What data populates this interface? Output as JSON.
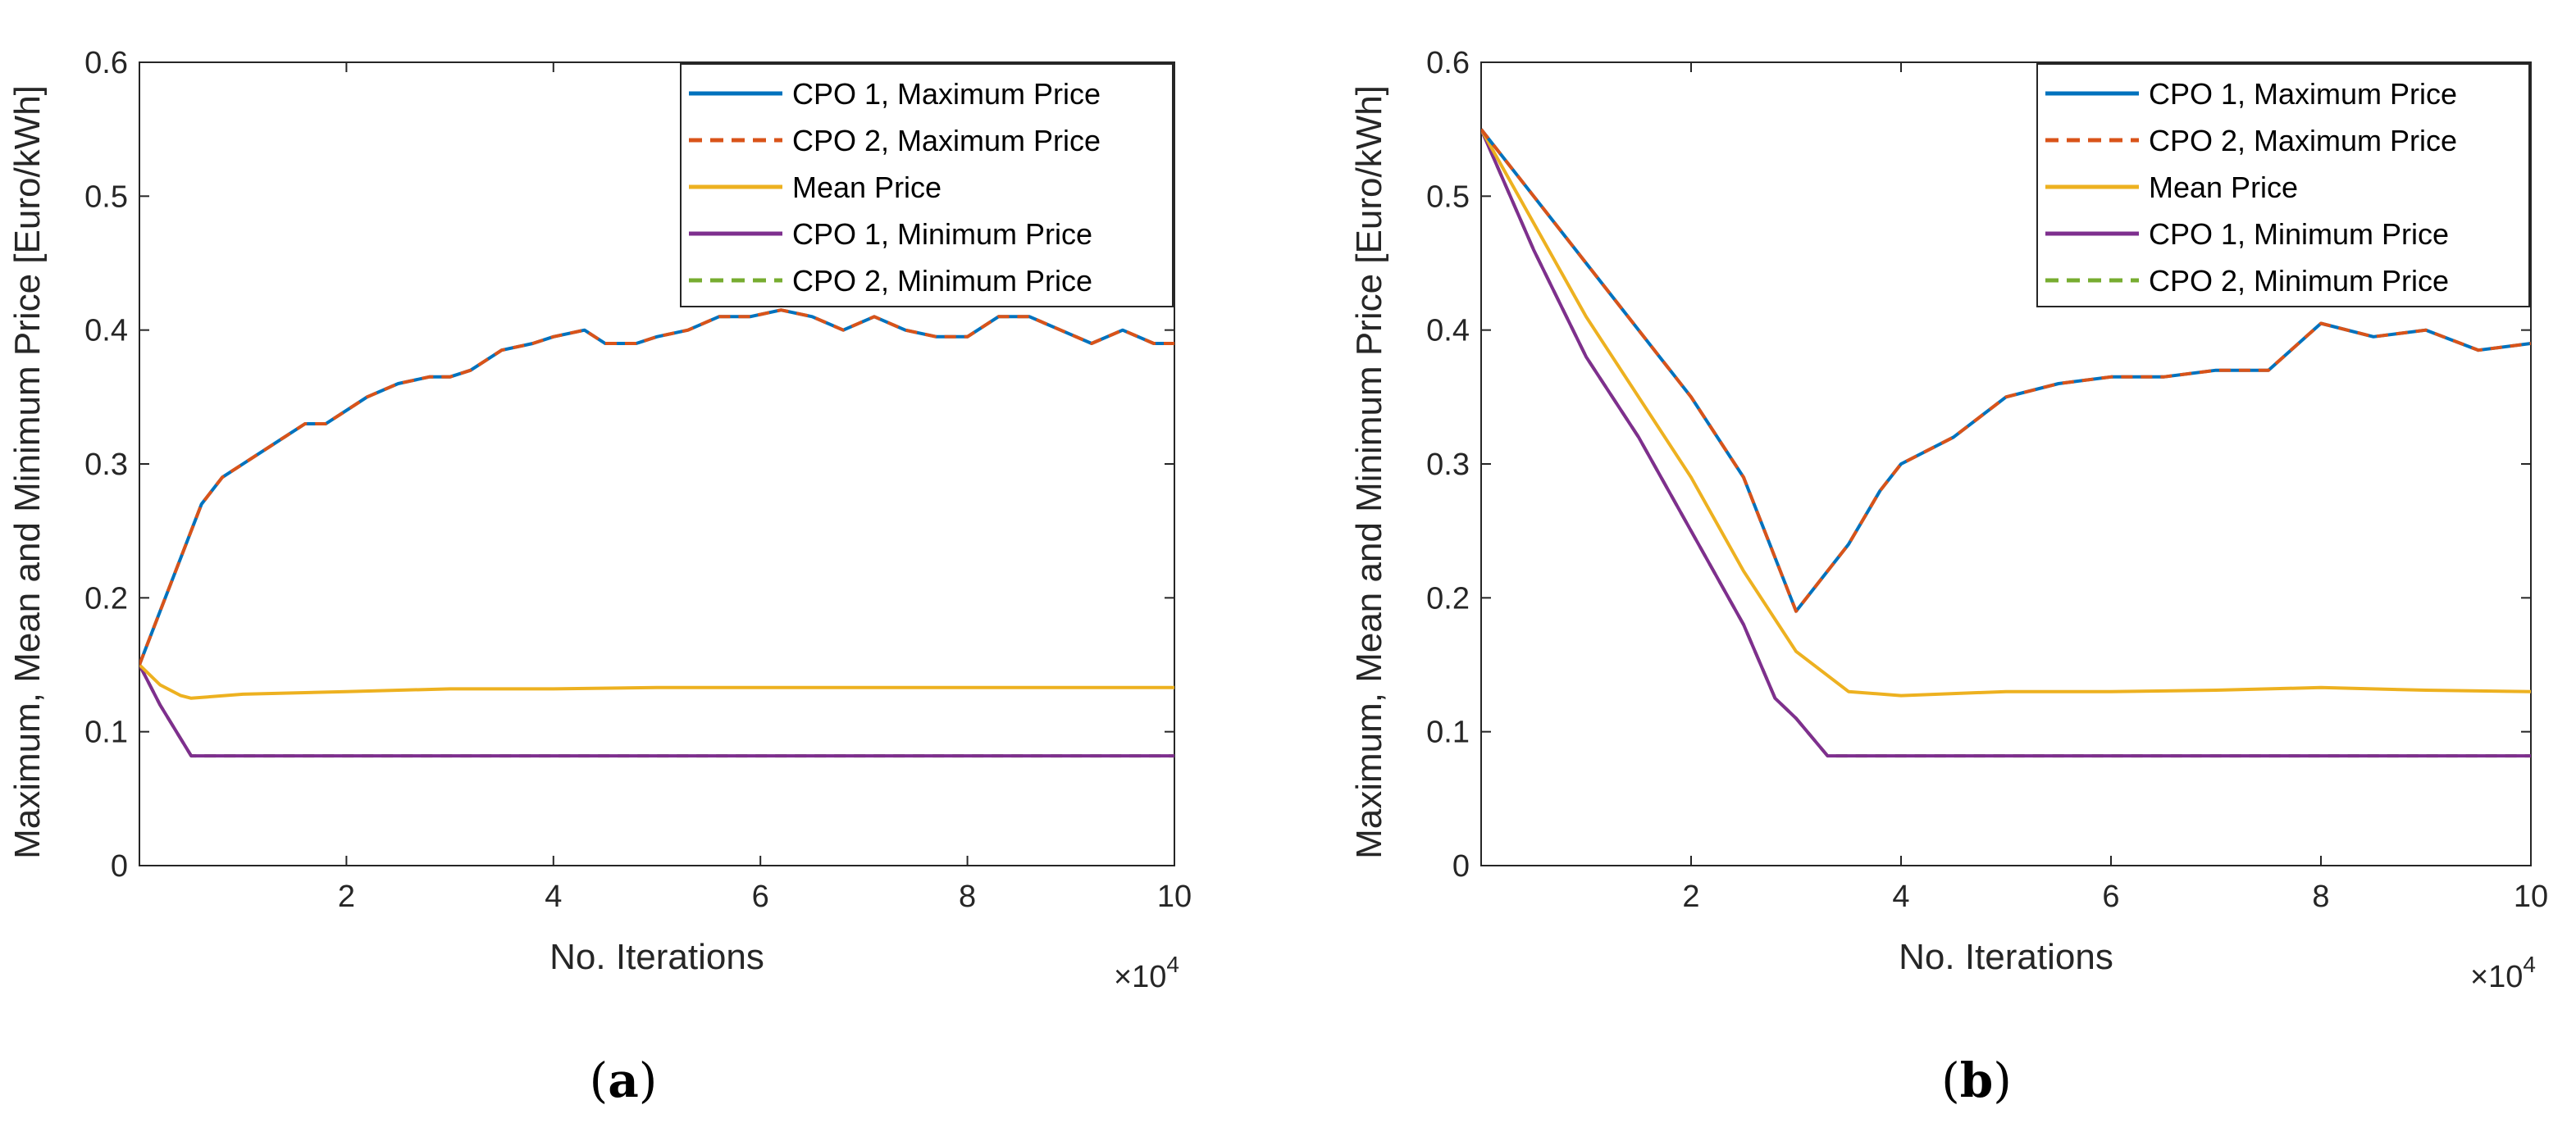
{
  "colors": {
    "cpo1_max": "#0072BD",
    "cpo2_max": "#D95319",
    "mean": "#EDB120",
    "cpo1_min": "#7E2F8E",
    "cpo2_min": "#77AC30"
  },
  "chart_data": [
    {
      "type": "line",
      "panel_label": "(a)",
      "xlabel": "No. Iterations",
      "ylabel": "Maximum, Mean and Minimum Price [Euro/kWh]",
      "x_multiplier": "×10",
      "x_multiplier_exp": "4",
      "xlim": [
        0,
        10
      ],
      "ylim": [
        0,
        0.6
      ],
      "xticks": [
        2,
        4,
        6,
        8,
        10
      ],
      "xtick_labels": [
        "2",
        "4",
        "6",
        "8",
        "10"
      ],
      "yticks": [
        0,
        0.1,
        0.2,
        0.3,
        0.4,
        0.5,
        0.6
      ],
      "ytick_labels": [
        "0",
        "0.1",
        "0.2",
        "0.3",
        "0.4",
        "0.5",
        "0.6"
      ],
      "legend_position": "top-right",
      "series": [
        {
          "key": "cpo1_max",
          "name": "CPO 1, Maximum Price",
          "style": "solid",
          "x": [
            0,
            0.2,
            0.4,
            0.6,
            0.8,
            1.0,
            1.2,
            1.4,
            1.6,
            1.8,
            2.0,
            2.2,
            2.5,
            2.8,
            3.0,
            3.2,
            3.5,
            3.8,
            4.0,
            4.3,
            4.5,
            4.8,
            5.0,
            5.3,
            5.6,
            5.9,
            6.2,
            6.5,
            6.8,
            7.1,
            7.4,
            7.7,
            8.0,
            8.3,
            8.6,
            8.9,
            9.2,
            9.5,
            9.8,
            10.0
          ],
          "y": [
            0.15,
            0.19,
            0.23,
            0.27,
            0.29,
            0.3,
            0.31,
            0.32,
            0.33,
            0.33,
            0.34,
            0.35,
            0.36,
            0.365,
            0.365,
            0.37,
            0.385,
            0.39,
            0.395,
            0.4,
            0.39,
            0.39,
            0.395,
            0.4,
            0.41,
            0.41,
            0.415,
            0.41,
            0.4,
            0.41,
            0.4,
            0.395,
            0.395,
            0.41,
            0.41,
            0.4,
            0.39,
            0.4,
            0.39,
            0.39
          ]
        },
        {
          "key": "cpo2_max",
          "name": "CPO 2, Maximum Price",
          "style": "dashed",
          "x": [
            0,
            0.2,
            0.4,
            0.6,
            0.8,
            1.0,
            1.2,
            1.4,
            1.6,
            1.8,
            2.0,
            2.2,
            2.5,
            2.8,
            3.0,
            3.2,
            3.5,
            3.8,
            4.0,
            4.3,
            4.5,
            4.8,
            5.0,
            5.3,
            5.6,
            5.9,
            6.2,
            6.5,
            6.8,
            7.1,
            7.4,
            7.7,
            8.0,
            8.3,
            8.6,
            8.9,
            9.2,
            9.5,
            9.8,
            10.0
          ],
          "y": [
            0.15,
            0.19,
            0.23,
            0.27,
            0.29,
            0.3,
            0.31,
            0.32,
            0.33,
            0.33,
            0.34,
            0.35,
            0.36,
            0.365,
            0.365,
            0.37,
            0.385,
            0.39,
            0.395,
            0.4,
            0.39,
            0.39,
            0.395,
            0.4,
            0.41,
            0.41,
            0.415,
            0.41,
            0.4,
            0.41,
            0.4,
            0.395,
            0.395,
            0.41,
            0.41,
            0.4,
            0.39,
            0.4,
            0.39,
            0.39
          ]
        },
        {
          "key": "mean",
          "name": "Mean Price",
          "style": "solid",
          "x": [
            0,
            0.2,
            0.4,
            0.5,
            1.0,
            2.0,
            3.0,
            4.0,
            5.0,
            6.0,
            7.0,
            8.0,
            9.0,
            10.0
          ],
          "y": [
            0.15,
            0.135,
            0.127,
            0.125,
            0.128,
            0.13,
            0.132,
            0.132,
            0.133,
            0.133,
            0.133,
            0.133,
            0.133,
            0.133
          ]
        },
        {
          "key": "cpo1_min",
          "name": "CPO 1, Minimum Price",
          "style": "solid",
          "x": [
            0,
            0.2,
            0.5,
            1.0,
            5.0,
            10.0
          ],
          "y": [
            0.15,
            0.12,
            0.082,
            0.082,
            0.082,
            0.082
          ]
        },
        {
          "key": "cpo2_min",
          "name": "CPO 2, Minimum Price",
          "style": "dashed",
          "x": [
            0,
            0.2,
            0.5,
            1.0,
            5.0,
            10.0
          ],
          "y": [
            0.15,
            0.12,
            0.082,
            0.082,
            0.082,
            0.082
          ]
        }
      ]
    },
    {
      "type": "line",
      "panel_label": "(b)",
      "xlabel": "No. Iterations",
      "ylabel": "Maximum, Mean and Minimum Price [Euro/kWh]",
      "x_multiplier": "×10",
      "x_multiplier_exp": "4",
      "xlim": [
        0,
        10
      ],
      "ylim": [
        0,
        0.6
      ],
      "xticks": [
        2,
        4,
        6,
        8,
        10
      ],
      "xtick_labels": [
        "2",
        "4",
        "6",
        "8",
        "10"
      ],
      "yticks": [
        0,
        0.1,
        0.2,
        0.3,
        0.4,
        0.5,
        0.6
      ],
      "ytick_labels": [
        "0",
        "0.1",
        "0.2",
        "0.3",
        "0.4",
        "0.5",
        "0.6"
      ],
      "legend_position": "top-right",
      "series": [
        {
          "key": "cpo1_max",
          "name": "CPO 1, Maximum Price",
          "style": "solid",
          "x": [
            0,
            0.5,
            1.0,
            1.5,
            2.0,
            2.5,
            2.8,
            3.0,
            3.2,
            3.5,
            3.8,
            4.0,
            4.5,
            5.0,
            5.5,
            6.0,
            6.5,
            7.0,
            7.5,
            8.0,
            8.5,
            9.0,
            9.5,
            10.0
          ],
          "y": [
            0.55,
            0.5,
            0.45,
            0.4,
            0.35,
            0.29,
            0.23,
            0.19,
            0.21,
            0.24,
            0.28,
            0.3,
            0.32,
            0.35,
            0.36,
            0.365,
            0.365,
            0.37,
            0.37,
            0.405,
            0.395,
            0.4,
            0.385,
            0.39
          ]
        },
        {
          "key": "cpo2_max",
          "name": "CPO 2, Maximum Price",
          "style": "dashed",
          "x": [
            0,
            0.5,
            1.0,
            1.5,
            2.0,
            2.5,
            2.8,
            3.0,
            3.2,
            3.5,
            3.8,
            4.0,
            4.5,
            5.0,
            5.5,
            6.0,
            6.5,
            7.0,
            7.5,
            8.0,
            8.5,
            9.0,
            9.5,
            10.0
          ],
          "y": [
            0.55,
            0.5,
            0.45,
            0.4,
            0.35,
            0.29,
            0.23,
            0.19,
            0.21,
            0.24,
            0.28,
            0.3,
            0.32,
            0.35,
            0.36,
            0.365,
            0.365,
            0.37,
            0.37,
            0.405,
            0.395,
            0.4,
            0.385,
            0.39
          ]
        },
        {
          "key": "mean",
          "name": "Mean Price",
          "style": "solid",
          "x": [
            0,
            0.5,
            1.0,
            1.5,
            2.0,
            2.5,
            3.0,
            3.5,
            4.0,
            5.0,
            6.0,
            7.0,
            8.0,
            9.0,
            10.0
          ],
          "y": [
            0.55,
            0.48,
            0.41,
            0.35,
            0.29,
            0.22,
            0.16,
            0.13,
            0.127,
            0.13,
            0.13,
            0.131,
            0.133,
            0.131,
            0.13
          ]
        },
        {
          "key": "cpo1_min",
          "name": "CPO 1, Minimum Price",
          "style": "solid",
          "x": [
            0,
            0.5,
            1.0,
            1.5,
            2.0,
            2.5,
            2.8,
            3.0,
            3.3,
            4.0,
            6.0,
            8.0,
            10.0
          ],
          "y": [
            0.55,
            0.46,
            0.38,
            0.32,
            0.25,
            0.18,
            0.125,
            0.11,
            0.082,
            0.082,
            0.082,
            0.082,
            0.082
          ]
        },
        {
          "key": "cpo2_min",
          "name": "CPO 2, Minimum Price",
          "style": "dashed",
          "x": [
            0,
            0.5,
            1.0,
            1.5,
            2.0,
            2.5,
            2.8,
            3.0,
            3.3,
            4.0,
            6.0,
            8.0,
            10.0
          ],
          "y": [
            0.55,
            0.46,
            0.38,
            0.32,
            0.25,
            0.18,
            0.125,
            0.11,
            0.082,
            0.082,
            0.082,
            0.082,
            0.082
          ]
        }
      ]
    }
  ]
}
